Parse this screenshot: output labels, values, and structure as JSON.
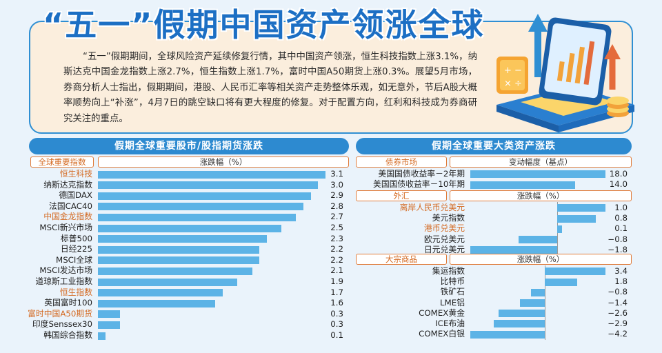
{
  "header": {
    "title": "“五一”假期中国资产领涨全球",
    "summary": "“五一”假期期间，全球风险资产延续修复行情，其中中国资产领涨，恒生科技指数上涨3.1%，纳斯达克中国金龙指数上涨2.7%，恒生指数上涨1.7%，富时中国A50期货上涨0.3%。展望5月市场，券商分析人士指出，假期期间，港股、人民币汇率等相关资产走势整体乐观，如无意外，节后A股大概率顺势向上“补涨”，4月7日的跳空缺口将有更大程度的修复。对于配置方向，红利和科技成为券商研究关注的重点。"
  },
  "colors": {
    "bar": "#5cb3e6",
    "header": "#2d8ad0",
    "highlight": "#d46a22",
    "title": "#1c6fc4"
  },
  "chart_data": [
    {
      "type": "bar",
      "orientation": "horizontal",
      "title": "假期全球重要股市/股指期货涨跌",
      "category_header": "全球重要指数",
      "value_header": "涨跌幅（%）",
      "categories": [
        "恒生科技",
        "纳斯达克指数",
        "德国DAX",
        "法国CAC40",
        "中国金龙指数",
        "MSCI新兴市场",
        "标普500",
        "日经225",
        "MSCI全球",
        "MSCI发达市场",
        "道琼斯工业指数",
        "恒生指数",
        "英国富时100",
        "富时中国A50期货",
        "印度Senssex30",
        "韩国综合指数"
      ],
      "values": [
        3.1,
        3.0,
        2.9,
        2.8,
        2.7,
        2.5,
        2.3,
        2.2,
        2.2,
        2.1,
        1.9,
        1.7,
        1.6,
        0.3,
        0.3,
        0.1
      ],
      "value_labels": [
        "3.1",
        "3.0",
        "2.9",
        "2.8",
        "2.7",
        "2.5",
        "2.3",
        "2.2",
        "2.2",
        "2.1",
        "1.9",
        "1.7",
        "1.6",
        "0.3",
        "0.3",
        "0.1"
      ],
      "highlighted": [
        true,
        false,
        false,
        false,
        true,
        false,
        false,
        false,
        false,
        false,
        false,
        true,
        false,
        true,
        false,
        false
      ],
      "xlim": [
        0,
        3.1
      ]
    },
    {
      "type": "bar",
      "orientation": "horizontal",
      "title": "假期全球重要大类资产涨跌",
      "groups": [
        {
          "name": "债券市场",
          "value_header": "变动幅度（基点）",
          "categories": [
            "美国国债收益率－2年期",
            "美国国债收益率－10年期"
          ],
          "values": [
            18.0,
            14.0
          ],
          "value_labels": [
            "18.0",
            "14.0"
          ],
          "highlighted": [
            false,
            false
          ],
          "xlim": [
            0,
            18.0
          ]
        },
        {
          "name": "外汇",
          "value_header": "涨跌幅（%）",
          "categories": [
            "离岸人民币兑美元",
            "美元指数",
            "港币兑美元",
            "欧元兑美元",
            "日元兑美元"
          ],
          "values": [
            1.0,
            0.8,
            0.1,
            -0.8,
            -1.8
          ],
          "value_labels": [
            "1.0",
            "0.8",
            "0.1",
            "−0.8",
            "−1.8"
          ],
          "highlighted": [
            true,
            false,
            true,
            false,
            false
          ],
          "xlim": [
            -1.8,
            1.0
          ]
        },
        {
          "name": "大宗商品",
          "value_header": "涨跌幅（%）",
          "categories": [
            "集运指数",
            "比特币",
            "铁矿石",
            "LME铝",
            "COMEX黄金",
            "ICE布油",
            "COMEX白银"
          ],
          "values": [
            3.4,
            1.8,
            -0.8,
            -1.4,
            -2.6,
            -2.9,
            -4.2
          ],
          "value_labels": [
            "3.4",
            "1.8",
            "−0.8",
            "−1.4",
            "−2.6",
            "−2.9",
            "−4.2"
          ],
          "highlighted": [
            false,
            false,
            false,
            false,
            false,
            false,
            false
          ],
          "xlim": [
            -4.2,
            3.4
          ]
        }
      ]
    }
  ]
}
